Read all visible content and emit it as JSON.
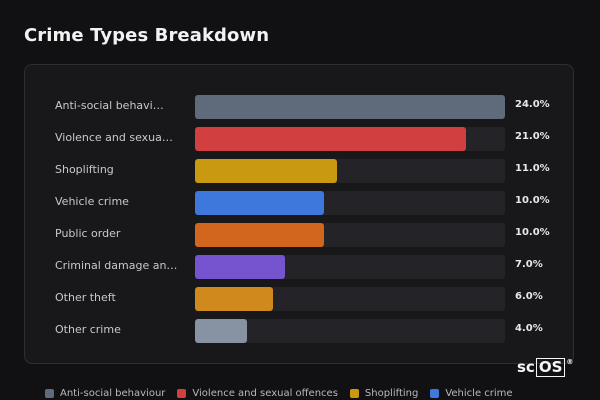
{
  "header": {
    "title": "Crime Types Breakdown"
  },
  "chart_data": {
    "type": "bar",
    "orientation": "horizontal",
    "title": "Crime Types Breakdown",
    "xlim": [
      0,
      24
    ],
    "grid": false,
    "legend_position": "bottom",
    "categories": [
      "Anti-social behavi…",
      "Violence and sexua…",
      "Shoplifting",
      "Vehicle crime",
      "Public order",
      "Criminal damage an…",
      "Other theft",
      "Other crime"
    ],
    "values": [
      24.0,
      21.0,
      11.0,
      10.0,
      10.0,
      7.0,
      6.0,
      4.0
    ],
    "value_labels": [
      "24.0%",
      "21.0%",
      "11.0%",
      "10.0%",
      "10.0%",
      "7.0%",
      "6.0%",
      "4.0%"
    ],
    "colors": [
      "#5f6b7a",
      "#d13f41",
      "#c99a10",
      "#3f78dc",
      "#d2661e",
      "#7653cf",
      "#d0891c",
      "#8793a3"
    ],
    "legend": [
      {
        "label": "Anti-social behaviour",
        "color": "#5f6b7a"
      },
      {
        "label": "Violence and sexual offences",
        "color": "#d13f41"
      },
      {
        "label": "Shoplifting",
        "color": "#c99a10"
      },
      {
        "label": "Vehicle crime",
        "color": "#3f78dc"
      }
    ]
  },
  "logo": {
    "text_left": "sc",
    "text_boxed": "OS",
    "mark": "®"
  }
}
